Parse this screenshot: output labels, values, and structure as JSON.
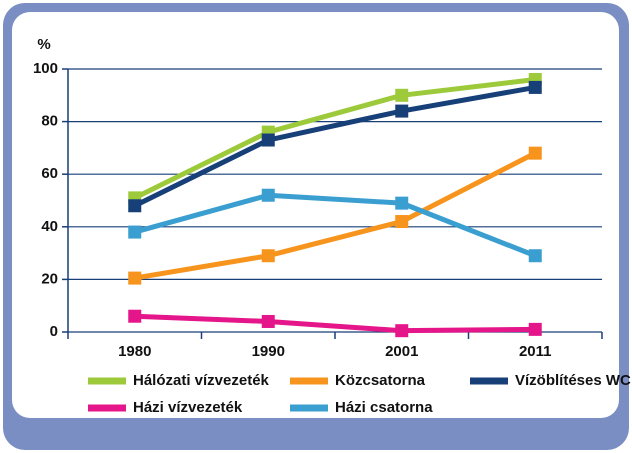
{
  "chart_data": {
    "type": "line",
    "y_label": "%",
    "categories": [
      "1980",
      "1990",
      "2001",
      "2011"
    ],
    "series": [
      {
        "name": "Hálózati vízvezeték",
        "color": "#9cca3b",
        "values": [
          51,
          76,
          90,
          96
        ]
      },
      {
        "name": "Közcsatorna",
        "color": "#f7941d",
        "values": [
          20.5,
          29,
          42,
          68
        ]
      },
      {
        "name": "Vízöblítéses WC",
        "color": "#173f78",
        "values": [
          48,
          73,
          84,
          93
        ]
      },
      {
        "name": "Házi vízvezeték",
        "color": "#e5168a",
        "values": [
          6,
          4,
          0.5,
          1
        ]
      },
      {
        "name": "Házi csatorna",
        "color": "#3a9fd0",
        "values": [
          38,
          52,
          49,
          29
        ]
      }
    ],
    "ylim": [
      0,
      100
    ],
    "yticks": [
      0,
      20,
      40,
      60,
      80,
      100
    ],
    "grid": true
  }
}
